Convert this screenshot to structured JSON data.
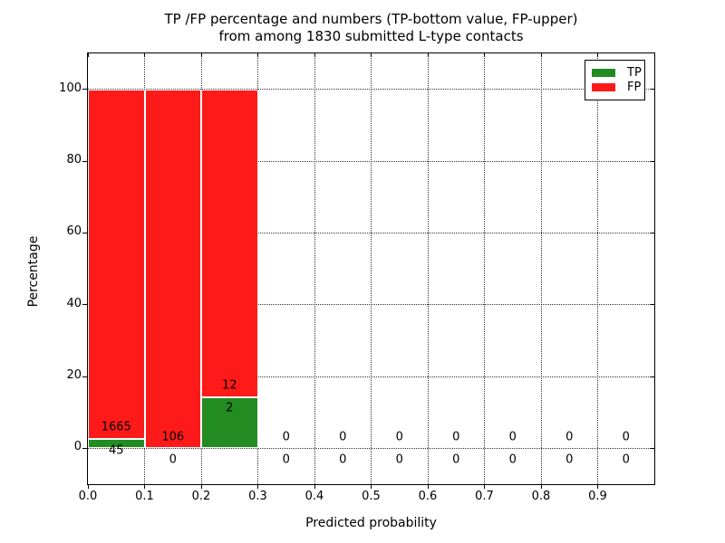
{
  "title": {
    "line1": "TP /FP percentage and numbers (TP-bottom value, FP-upper)",
    "line2": "from among 1830 submitted L-type contacts"
  },
  "colors": {
    "tp_green": "#228B22",
    "fp_red": "#ff1a1a",
    "grid": "#000000",
    "text": "#000000",
    "background": "#ffffff"
  },
  "chart_data": {
    "type": "bar",
    "stacked": true,
    "title": "TP /FP percentage and numbers (TP-bottom value, FP-upper) from among 1830 submitted L-type contacts",
    "total_contacts": 1830,
    "xlabel": "Predicted probability",
    "ylabel": "Percentage",
    "xlim": [
      0.0,
      1.0
    ],
    "ylim": [
      -10,
      110
    ],
    "grid": "dotted",
    "bin_width": 0.1,
    "x_tick_values": [
      0.0,
      0.1,
      0.2,
      0.3,
      0.4,
      0.5,
      0.6,
      0.7,
      0.8,
      0.9
    ],
    "x_tick_labels": [
      "0.0",
      "0.1",
      "0.2",
      "0.3",
      "0.4",
      "0.5",
      "0.6",
      "0.7",
      "0.8",
      "0.9"
    ],
    "y_tick_values": [
      0,
      20,
      40,
      60,
      80,
      100
    ],
    "y_tick_labels": [
      "0",
      "20",
      "40",
      "60",
      "80",
      "100"
    ],
    "annotation_offset_pct": 3.2,
    "series": [
      {
        "name": "TP",
        "color": "#228B22"
      },
      {
        "name": "FP",
        "color": "#ff1a1a"
      }
    ],
    "legend": {
      "location": "upper right",
      "entries": [
        {
          "label": "TP",
          "color": "#228B22"
        },
        {
          "label": "FP",
          "color": "#ff1a1a"
        }
      ]
    },
    "bins": [
      {
        "x_start": 0.0,
        "x_end": 0.1,
        "tp": 45,
        "fp": 1665,
        "tp_pct": 2.63,
        "fp_pct": 97.37
      },
      {
        "x_start": 0.1,
        "x_end": 0.2,
        "tp": 0,
        "fp": 106,
        "tp_pct": 0,
        "fp_pct": 100
      },
      {
        "x_start": 0.2,
        "x_end": 0.3,
        "tp": 2,
        "fp": 12,
        "tp_pct": 14.29,
        "fp_pct": 85.71
      },
      {
        "x_start": 0.3,
        "x_end": 0.4,
        "tp": 0,
        "fp": 0,
        "tp_pct": 0,
        "fp_pct": 0
      },
      {
        "x_start": 0.4,
        "x_end": 0.5,
        "tp": 0,
        "fp": 0,
        "tp_pct": 0,
        "fp_pct": 0
      },
      {
        "x_start": 0.5,
        "x_end": 0.6,
        "tp": 0,
        "fp": 0,
        "tp_pct": 0,
        "fp_pct": 0
      },
      {
        "x_start": 0.6,
        "x_end": 0.7,
        "tp": 0,
        "fp": 0,
        "tp_pct": 0,
        "fp_pct": 0
      },
      {
        "x_start": 0.7,
        "x_end": 0.8,
        "tp": 0,
        "fp": 0,
        "tp_pct": 0,
        "fp_pct": 0
      },
      {
        "x_start": 0.8,
        "x_end": 0.9,
        "tp": 0,
        "fp": 0,
        "tp_pct": 0,
        "fp_pct": 0
      },
      {
        "x_start": 0.9,
        "x_end": 1.0,
        "tp": 0,
        "fp": 0,
        "tp_pct": 0,
        "fp_pct": 0
      }
    ]
  }
}
